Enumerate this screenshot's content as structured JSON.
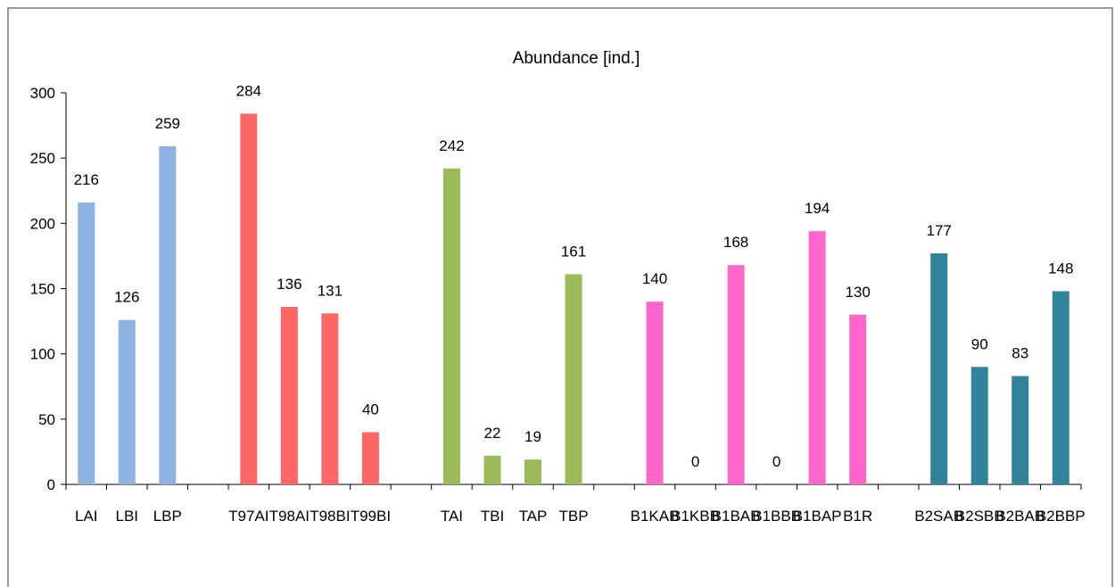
{
  "chart_data": {
    "type": "bar",
    "title": "Abundance [ind.]",
    "ylim": [
      0,
      300
    ],
    "yticks": [
      0,
      50,
      100,
      150,
      200,
      250,
      300
    ],
    "grid": false,
    "legend": "none",
    "categories": [
      "LAI",
      "LBI",
      "LBP",
      "",
      "T97AI",
      "T98AI",
      "T98BI",
      "T99BI",
      "",
      "TAI",
      "TBI",
      "TAP",
      "TBP",
      "",
      "B1KAB",
      "B1KBB",
      "B1BAB",
      "B1BBB",
      "B1BAP",
      "B1R",
      "",
      "B2SAB",
      "B2SBB",
      "B2BAB",
      "B2BBP"
    ],
    "values": [
      216,
      126,
      259,
      null,
      284,
      136,
      131,
      40,
      null,
      242,
      22,
      19,
      161,
      null,
      140,
      0,
      168,
      0,
      194,
      130,
      null,
      177,
      90,
      83,
      148
    ],
    "groups": [
      {
        "color": "#8db3e2",
        "indices": [
          0,
          1,
          2
        ]
      },
      {
        "color": "#ff6666",
        "indices": [
          4,
          5,
          6,
          7
        ]
      },
      {
        "color": "#9bbb59",
        "indices": [
          9,
          10,
          11,
          12
        ]
      },
      {
        "color": "#ff66cc",
        "indices": [
          14,
          15,
          16,
          17,
          18,
          19
        ]
      },
      {
        "color": "#31849b",
        "indices": [
          21,
          22,
          23,
          24
        ]
      }
    ]
  }
}
